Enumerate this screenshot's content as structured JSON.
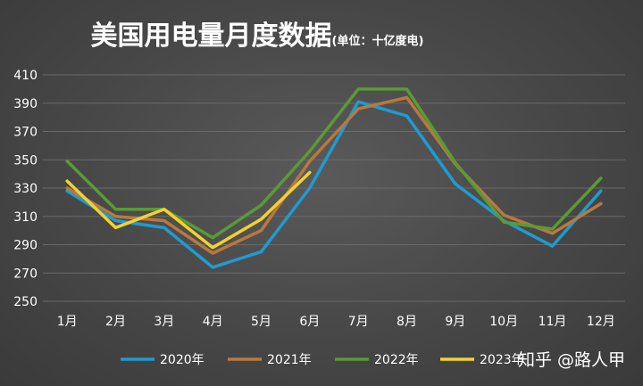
{
  "chart_data": {
    "type": "line",
    "title": "美国用电量月度数据",
    "subtitle": "(单位：十亿度电)",
    "categories": [
      "1月",
      "2月",
      "3月",
      "4月",
      "5月",
      "6月",
      "7月",
      "8月",
      "9月",
      "10月",
      "11月",
      "12月"
    ],
    "ylim": [
      250,
      410
    ],
    "yticks": [
      250,
      270,
      290,
      310,
      330,
      350,
      370,
      390,
      410
    ],
    "grid": true,
    "legend_position": "bottom",
    "series": [
      {
        "name": "2020年",
        "color": "#1f9bd1",
        "values": [
          328,
          307,
          302,
          274,
          285,
          330,
          391,
          381,
          333,
          307,
          289,
          328
        ]
      },
      {
        "name": "2021年",
        "color": "#b8793f",
        "values": [
          330,
          310,
          307,
          284,
          300,
          349,
          386,
          394,
          347,
          311,
          298,
          319
        ]
      },
      {
        "name": "2022年",
        "color": "#5b9a35",
        "values": [
          349,
          315,
          315,
          295,
          318,
          356,
          400,
          400,
          348,
          306,
          301,
          337
        ]
      },
      {
        "name": "2023年",
        "color": "#f2d22e",
        "values": [
          335,
          302,
          315,
          288,
          308,
          341,
          null,
          null,
          null,
          null,
          null,
          null
        ]
      }
    ]
  },
  "watermark": "知乎 @路人甲"
}
